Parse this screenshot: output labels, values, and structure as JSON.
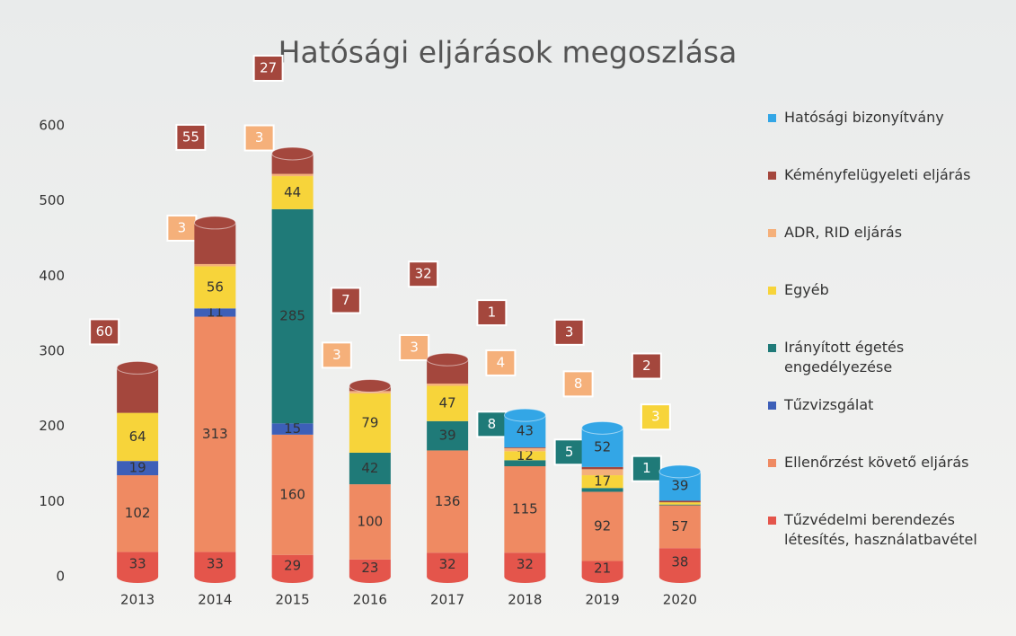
{
  "chart_data": {
    "type": "stacked-bar",
    "title": "Hatósági eljárások megoszlása",
    "categories": [
      "2013",
      "2014",
      "2015",
      "2016",
      "2017",
      "2018",
      "2019",
      "2020"
    ],
    "series": [
      {
        "name": "Tűzvédelmi berendezés létesítés, használatbavétel",
        "color": "#e4554b",
        "values": [
          33,
          33,
          29,
          23,
          32,
          32,
          21,
          38
        ]
      },
      {
        "name": "Ellenőrzést követő eljárás",
        "color": "#ef8a62",
        "values": [
          102,
          313,
          160,
          100,
          136,
          115,
          92,
          57
        ]
      },
      {
        "name": "Tűzvizsgálat",
        "color": "#3d5fb8",
        "values": [
          19,
          11,
          15,
          null,
          null,
          null,
          null,
          null
        ]
      },
      {
        "name": "Irányított égetés engedélyezése",
        "color": "#1f7a78",
        "values": [
          null,
          null,
          285,
          42,
          39,
          8,
          5,
          1
        ]
      },
      {
        "name": "Egyéb",
        "color": "#f7d43a",
        "values": [
          64,
          56,
          44,
          79,
          47,
          12,
          17,
          3
        ]
      },
      {
        "name": "ADR, RID eljárás",
        "color": "#f5b07a",
        "values": [
          null,
          3,
          3,
          3,
          3,
          4,
          8,
          null
        ]
      },
      {
        "name": "Kéményfelügyeleti eljárás",
        "color": "#a4473d",
        "values": [
          60,
          55,
          27,
          7,
          32,
          1,
          3,
          2
        ]
      },
      {
        "name": "Hatósági bizonyítvány",
        "color": "#33a6e6",
        "values": [
          null,
          null,
          null,
          null,
          null,
          43,
          52,
          39
        ]
      }
    ],
    "ylim": [
      0,
      600
    ],
    "yticks": [
      0,
      100,
      200,
      300,
      400,
      500,
      600
    ],
    "legend": "right"
  }
}
